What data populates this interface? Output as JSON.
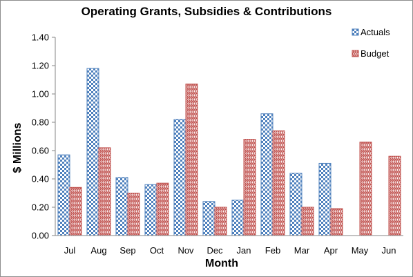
{
  "chart_data": {
    "type": "bar",
    "title": "Operating Grants, Subsidies & Contributions",
    "xlabel": "Month",
    "ylabel": "$ Millions",
    "ylim": [
      0,
      1.4
    ],
    "yticks": [
      "0.00",
      "0.20",
      "0.40",
      "0.60",
      "0.80",
      "1.00",
      "1.20",
      "1.40"
    ],
    "grid": false,
    "legend_position": "top-right",
    "categories": [
      "Jul",
      "Aug",
      "Sep",
      "Oct",
      "Nov",
      "Dec",
      "Jan",
      "Feb",
      "Mar",
      "Apr",
      "May",
      "Jun"
    ],
    "series": [
      {
        "name": "Actuals",
        "color": "#4f81bd",
        "pattern": "checkerboard",
        "values": [
          0.57,
          1.18,
          0.41,
          0.36,
          0.82,
          0.24,
          0.25,
          0.86,
          0.44,
          0.51,
          null,
          null
        ]
      },
      {
        "name": "Budget",
        "color": "#c0504d",
        "pattern": "weave",
        "values": [
          0.34,
          0.62,
          0.3,
          0.37,
          1.07,
          0.2,
          0.68,
          0.74,
          0.2,
          0.19,
          0.66,
          0.56
        ]
      }
    ]
  }
}
